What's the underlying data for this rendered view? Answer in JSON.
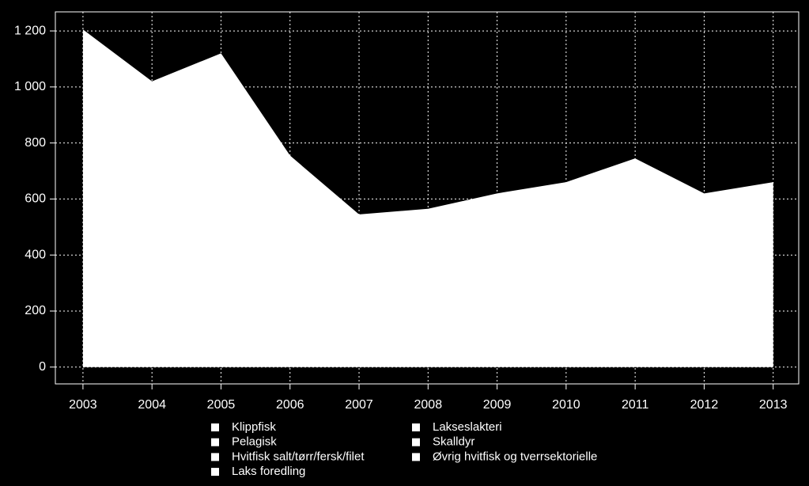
{
  "chart_data": {
    "type": "area",
    "x": [
      2003,
      2004,
      2005,
      2006,
      2007,
      2008,
      2009,
      2010,
      2011,
      2012,
      2013
    ],
    "values": [
      1205,
      1020,
      1120,
      755,
      545,
      565,
      620,
      660,
      745,
      620,
      660
    ],
    "color": "#ffffff",
    "xlim": [
      2002.6,
      2013.37
    ],
    "ylim": [
      -60,
      1268
    ],
    "xticks": [
      2003,
      2004,
      2005,
      2006,
      2007,
      2008,
      2009,
      2010,
      2011,
      2012,
      2013
    ],
    "yticks": [
      0,
      200,
      400,
      600,
      800,
      {
        "value": 1000,
        "label": "1 000"
      },
      {
        "value": 1200,
        "label": "1 200"
      }
    ],
    "grid": true,
    "legend": [
      "Klippfisk",
      "Pelagisk",
      "Hvitfisk salt/tørr/fersk/filet",
      "Laks foredling",
      "Lakseslakteri",
      "Skalldyr",
      "Øvrig hvitfisk og tverrsektorielle"
    ],
    "legend_color": "#ffffff",
    "legend_position": "bottom"
  }
}
